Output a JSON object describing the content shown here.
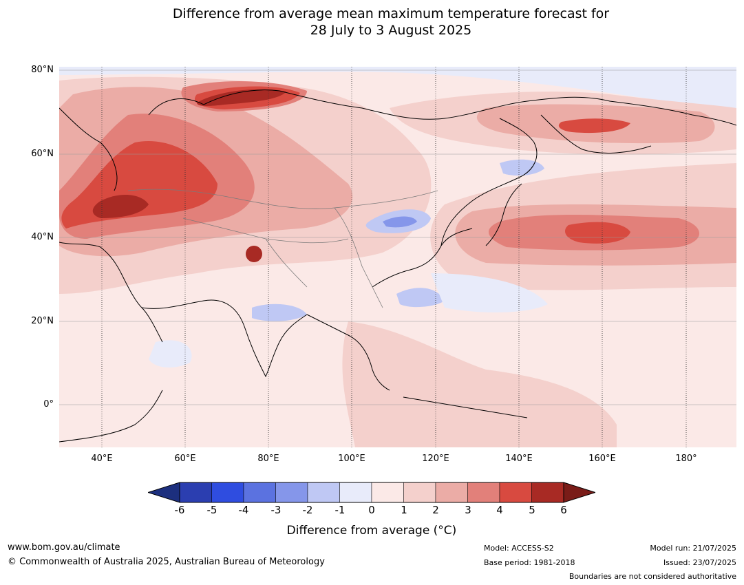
{
  "title_line1": "Difference from average mean maximum temperature forecast for",
  "title_line2": "28 July to 3 August 2025",
  "lat_labels": [
    "80°N",
    "60°N",
    "40°N",
    "20°N",
    "0°"
  ],
  "lon_labels": [
    "40°E",
    "60°E",
    "80°E",
    "100°E",
    "120°E",
    "140°E",
    "160°E",
    "180°"
  ],
  "colorbar": {
    "ticks": [
      "-6",
      "-5",
      "-4",
      "-3",
      "-2",
      "-1",
      "0",
      "1",
      "2",
      "3",
      "4",
      "5",
      "6"
    ],
    "colors": [
      "#1c2f7e",
      "#2b3eb0",
      "#2f4de0",
      "#5b72e0",
      "#8596ea",
      "#bfc8f4",
      "#e8ebfa",
      "#fbe9e7",
      "#f4d0cc",
      "#ebaca6",
      "#e2807a",
      "#d84a40",
      "#a82a24",
      "#7a1c18"
    ],
    "label": "Difference from average (°C)"
  },
  "footer": {
    "website": "www.bom.gov.au/climate",
    "copyright": "© Commonwealth of Australia 2025, Australian Bureau of Meteorology",
    "model": "Model: ACCESS-S2",
    "base_period": "Base period: 1981-2018",
    "model_run": "Model run: 21/07/2025",
    "issued": "Issued: 23/07/2025",
    "boundaries": "Boundaries are not considered authoritative"
  }
}
